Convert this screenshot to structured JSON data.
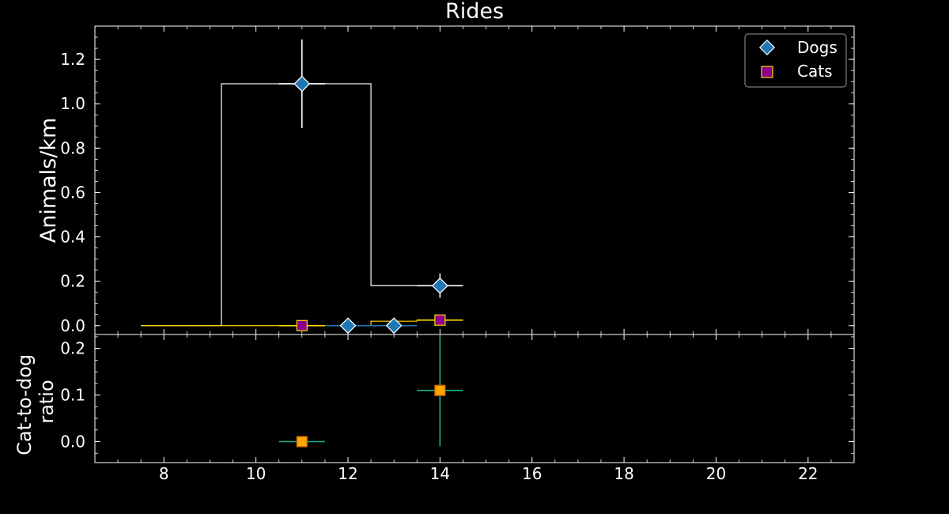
{
  "chart_data": {
    "type": "scatter",
    "title": "Rides",
    "x_ticks": [
      8,
      10,
      12,
      14,
      16,
      18,
      20,
      22
    ],
    "xlim": [
      6.5,
      23
    ],
    "top_panel": {
      "ylabel": "Animals/km",
      "ylim": [
        -0.04,
        1.35
      ],
      "y_ticks": [
        "0.0",
        "0.2",
        "0.4",
        "0.6",
        "0.8",
        "1.0",
        "1.2"
      ],
      "step_outline": [
        {
          "x0": 7.5,
          "x1": 9.25,
          "y": 0.0
        },
        {
          "x0": 9.25,
          "x1": 12.5,
          "y": 1.09
        },
        {
          "x0": 12.5,
          "x1": 14.5,
          "y": 0.18
        }
      ],
      "cats_step": [
        {
          "x0": 7.5,
          "x1": 12.5,
          "y": 0.0
        },
        {
          "x0": 12.5,
          "x1": 13.5,
          "y": 0.02
        },
        {
          "x0": 13.5,
          "x1": 14.5,
          "y": 0.025
        }
      ],
      "series": [
        {
          "name": "Dogs",
          "marker": "diamond",
          "color": "#1f77b4",
          "points": [
            {
              "x": 11,
              "y": 1.09,
              "xerr": 0.5,
              "yerr": 0.2,
              "errcolor": "#ffffff"
            },
            {
              "x": 12,
              "y": 0.0,
              "xerr": 0.5,
              "yerr": 0.0,
              "errcolor": "#1f77b4"
            },
            {
              "x": 13,
              "y": 0.0,
              "xerr": 0.5,
              "yerr": 0.0,
              "errcolor": "#1f77b4"
            },
            {
              "x": 14,
              "y": 0.18,
              "xerr": 0.5,
              "yerr": 0.055,
              "errcolor": "#ffffff"
            }
          ]
        },
        {
          "name": "Cats",
          "marker": "square",
          "color": "#8b008b",
          "edge": "#ffd700",
          "points": [
            {
              "x": 11,
              "y": 0.0,
              "xerr": 0.5,
              "yerr": 0.0,
              "errcolor": "#ffd700"
            },
            {
              "x": 14,
              "y": 0.025,
              "xerr": 0.5,
              "yerr": 0.0,
              "errcolor": "#ffd700"
            }
          ]
        }
      ],
      "legend": {
        "placement": "top-right",
        "entries": [
          "Dogs",
          "Cats"
        ]
      }
    },
    "bottom_panel": {
      "ylabel_line1": "Cat-to-dog",
      "ylabel_line2": "ratio",
      "ylim": [
        -0.045,
        0.23
      ],
      "y_ticks": [
        "0.0",
        "0.1",
        "0.2"
      ],
      "series": [
        {
          "name": "",
          "marker": "square",
          "color": "#ffa500",
          "errcolor": "#20b28a",
          "points": [
            {
              "x": 11,
              "y": 0.0,
              "xerr": 0.5,
              "yerr": 0.0
            },
            {
              "x": 14,
              "y": 0.11,
              "xerr": 0.5,
              "yerr": 0.12
            }
          ]
        }
      ]
    }
  }
}
